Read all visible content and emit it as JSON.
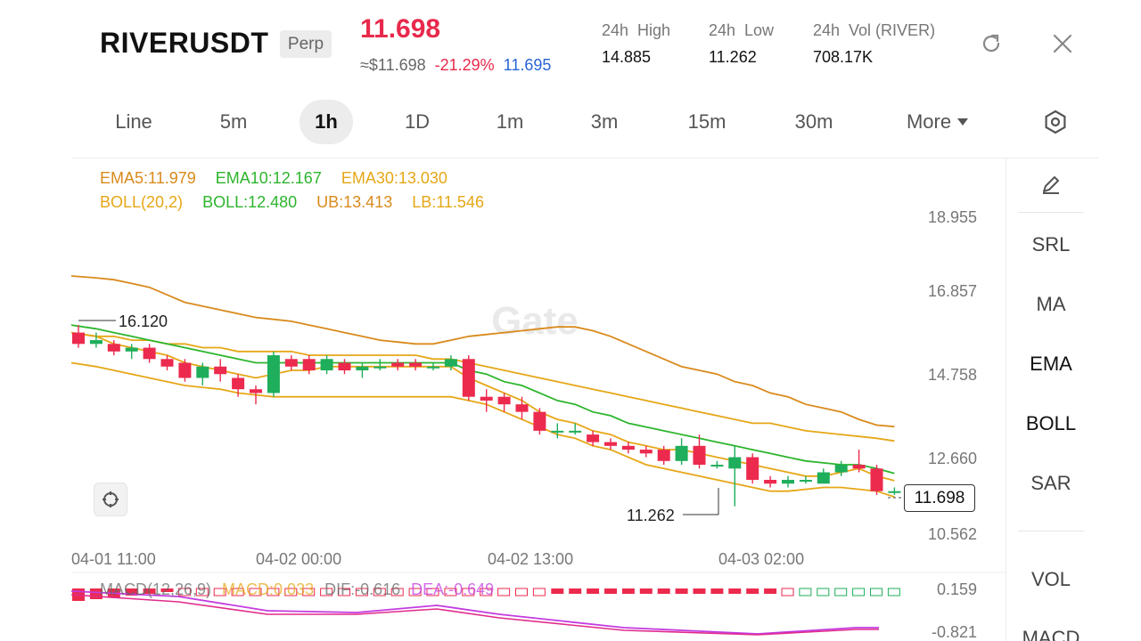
{
  "header": {
    "symbol": "RIVERUSDT",
    "badge": "Perp",
    "last_price": "11.698",
    "usd_price": "≈$11.698",
    "change_pct": "-21.29%",
    "mark_price": "11.695",
    "stats": [
      {
        "label": "24h  High",
        "value": "14.885"
      },
      {
        "label": "24h  Low",
        "value": "11.262"
      },
      {
        "label": "24h  Vol (RIVER)",
        "value": "708.17K"
      }
    ],
    "icons": {
      "refresh": "refresh-icon",
      "close": "close-icon"
    }
  },
  "timeframes": {
    "items": [
      "Line",
      "5m",
      "1h",
      "1D",
      "1m",
      "3m",
      "15m",
      "30m"
    ],
    "active": "1h",
    "more_label": "More"
  },
  "indicators": {
    "ema5": "EMA5:11.979",
    "ema10": "EMA10:12.167",
    "ema30": "EMA30:13.030",
    "boll_params": "BOLL(20,2)",
    "boll": "BOLL:12.480",
    "ub": "UB:13.413",
    "lb": "LB:11.546"
  },
  "side_tools": {
    "items": [
      "SRL",
      "MA",
      "EMA",
      "BOLL",
      "SAR",
      "VOL",
      "MACD"
    ],
    "active": [
      "EMA",
      "BOLL"
    ]
  },
  "chart_data": {
    "type": "candlestick",
    "y_axis_ticks": [
      "18.955",
      "16.857",
      "14.758",
      "12.660",
      "10.562"
    ],
    "x_axis_ticks": [
      "04-01 11:00",
      "04-02 00:00",
      "04-02 13:00",
      "04-03 02:00"
    ],
    "high_marker": "16.120",
    "low_marker": "11.262",
    "current_price": "11.698",
    "watermark": "Gate",
    "ylim": [
      10.562,
      18.955
    ],
    "candles": [
      [
        15.9,
        15.6,
        16.1,
        15.5
      ],
      [
        15.6,
        15.7,
        15.9,
        15.5
      ],
      [
        15.6,
        15.4,
        15.7,
        15.3
      ],
      [
        15.4,
        15.5,
        15.6,
        15.2
      ],
      [
        15.5,
        15.2,
        15.6,
        15.1
      ],
      [
        15.2,
        15.0,
        15.3,
        14.9
      ],
      [
        15.1,
        14.7,
        15.2,
        14.6
      ],
      [
        14.7,
        15.0,
        15.1,
        14.5
      ],
      [
        15.0,
        14.8,
        15.2,
        14.6
      ],
      [
        14.7,
        14.4,
        14.8,
        14.2
      ],
      [
        14.4,
        14.3,
        14.5,
        14.0
      ],
      [
        14.3,
        15.3,
        15.4,
        14.2
      ],
      [
        15.2,
        15.0,
        15.3,
        14.9
      ],
      [
        15.2,
        14.9,
        15.3,
        14.8
      ],
      [
        14.9,
        15.2,
        15.3,
        14.8
      ],
      [
        15.1,
        14.9,
        15.2,
        14.8
      ],
      [
        14.9,
        15.0,
        15.1,
        14.7
      ],
      [
        15.0,
        15.0,
        15.2,
        14.9
      ],
      [
        15.1,
        15.0,
        15.2,
        14.9
      ],
      [
        15.1,
        15.0,
        15.2,
        14.9
      ],
      [
        15.0,
        15.0,
        15.1,
        14.9
      ],
      [
        15.0,
        15.2,
        15.3,
        14.9
      ],
      [
        15.2,
        14.2,
        15.3,
        14.1
      ],
      [
        14.2,
        14.1,
        14.4,
        13.8
      ],
      [
        14.2,
        14.0,
        14.3,
        13.8
      ],
      [
        14.0,
        13.8,
        14.2,
        13.6
      ],
      [
        13.8,
        13.3,
        13.9,
        13.2
      ],
      [
        13.3,
        13.3,
        13.5,
        13.1
      ],
      [
        13.3,
        13.3,
        13.5,
        13.2
      ],
      [
        13.2,
        13.0,
        13.3,
        12.9
      ],
      [
        13.0,
        12.9,
        13.1,
        12.8
      ],
      [
        12.9,
        12.8,
        13.0,
        12.7
      ],
      [
        12.8,
        12.7,
        12.9,
        12.6
      ],
      [
        12.8,
        12.5,
        12.9,
        12.4
      ],
      [
        12.5,
        12.9,
        13.1,
        12.4
      ],
      [
        12.9,
        12.4,
        13.2,
        12.3
      ],
      [
        12.4,
        12.4,
        12.5,
        12.3
      ],
      [
        12.3,
        12.6,
        12.9,
        11.3
      ],
      [
        12.6,
        12.0,
        12.7,
        11.9
      ],
      [
        12.0,
        11.9,
        12.1,
        11.8
      ],
      [
        11.9,
        12.0,
        12.1,
        11.8
      ],
      [
        12.0,
        12.0,
        12.1,
        11.9
      ],
      [
        11.9,
        12.2,
        12.3,
        11.9
      ],
      [
        12.2,
        12.4,
        12.5,
        12.1
      ],
      [
        12.4,
        12.3,
        12.8,
        12.2
      ],
      [
        12.3,
        11.7,
        12.4,
        11.6
      ],
      [
        11.7,
        11.7,
        11.8,
        11.6
      ]
    ],
    "ema5_series": [
      15.9,
      15.8,
      15.6,
      15.5,
      15.4,
      15.3,
      15.1,
      15.0,
      14.9,
      14.8,
      14.7,
      14.8,
      14.9,
      14.9,
      15.0,
      15.0,
      15.0,
      15.0,
      15.0,
      15.0,
      15.0,
      15.0,
      14.7,
      14.5,
      14.3,
      14.1,
      13.8,
      13.6,
      13.5,
      13.3,
      13.2,
      13.0,
      12.9,
      12.8,
      12.8,
      12.7,
      12.6,
      12.5,
      12.4,
      12.3,
      12.2,
      12.1,
      12.1,
      12.2,
      12.3,
      12.1,
      11.98
    ],
    "ema10_series": [
      16.1,
      16.0,
      15.9,
      15.8,
      15.7,
      15.6,
      15.5,
      15.4,
      15.3,
      15.2,
      15.1,
      15.1,
      15.1,
      15.1,
      15.1,
      15.1,
      15.1,
      15.1,
      15.1,
      15.1,
      15.1,
      15.1,
      14.9,
      14.8,
      14.6,
      14.5,
      14.3,
      14.1,
      14.0,
      13.8,
      13.7,
      13.5,
      13.4,
      13.3,
      13.2,
      13.1,
      13.0,
      12.9,
      12.8,
      12.7,
      12.6,
      12.5,
      12.45,
      12.4,
      12.4,
      12.3,
      12.17
    ],
    "ema30_series": [
      15.9,
      15.8,
      15.8,
      15.7,
      15.7,
      15.6,
      15.6,
      15.5,
      15.5,
      15.4,
      15.4,
      15.4,
      15.4,
      15.3,
      15.3,
      15.3,
      15.3,
      15.3,
      15.3,
      15.3,
      15.2,
      15.2,
      15.1,
      15.0,
      14.9,
      14.8,
      14.7,
      14.6,
      14.5,
      14.4,
      14.3,
      14.2,
      14.1,
      14.0,
      13.9,
      13.8,
      13.7,
      13.6,
      13.5,
      13.5,
      13.4,
      13.3,
      13.25,
      13.2,
      13.15,
      13.1,
      13.03
    ],
    "boll_ub_series": [
      17.4,
      17.35,
      17.3,
      17.2,
      17.1,
      16.9,
      16.7,
      16.6,
      16.5,
      16.4,
      16.3,
      16.25,
      16.2,
      16.1,
      16.0,
      15.9,
      15.8,
      15.7,
      15.65,
      15.6,
      15.6,
      15.7,
      15.8,
      15.85,
      15.9,
      15.95,
      16.0,
      16.05,
      16.05,
      15.95,
      15.8,
      15.6,
      15.4,
      15.2,
      15.0,
      14.9,
      14.8,
      14.6,
      14.5,
      14.3,
      14.2,
      14.0,
      13.9,
      13.8,
      13.6,
      13.45,
      13.41
    ],
    "boll_lb_series": [
      15.1,
      15.0,
      14.9,
      14.8,
      14.7,
      14.6,
      14.5,
      14.45,
      14.4,
      14.3,
      14.25,
      14.2,
      14.2,
      14.2,
      14.2,
      14.2,
      14.2,
      14.2,
      14.2,
      14.2,
      14.2,
      14.2,
      14.1,
      14.0,
      13.8,
      13.6,
      13.4,
      13.2,
      13.1,
      12.9,
      12.8,
      12.6,
      12.4,
      12.3,
      12.2,
      12.1,
      12.0,
      11.9,
      11.8,
      11.7,
      11.7,
      11.75,
      11.8,
      11.8,
      11.75,
      11.7,
      11.55
    ]
  },
  "macd": {
    "legend": [
      "MACD(12,26,9)",
      "MACD:0.033",
      "DIF:-0.616",
      "DEA:-0.649"
    ],
    "y_ticks": [
      "0.159",
      "-0.821"
    ]
  }
}
